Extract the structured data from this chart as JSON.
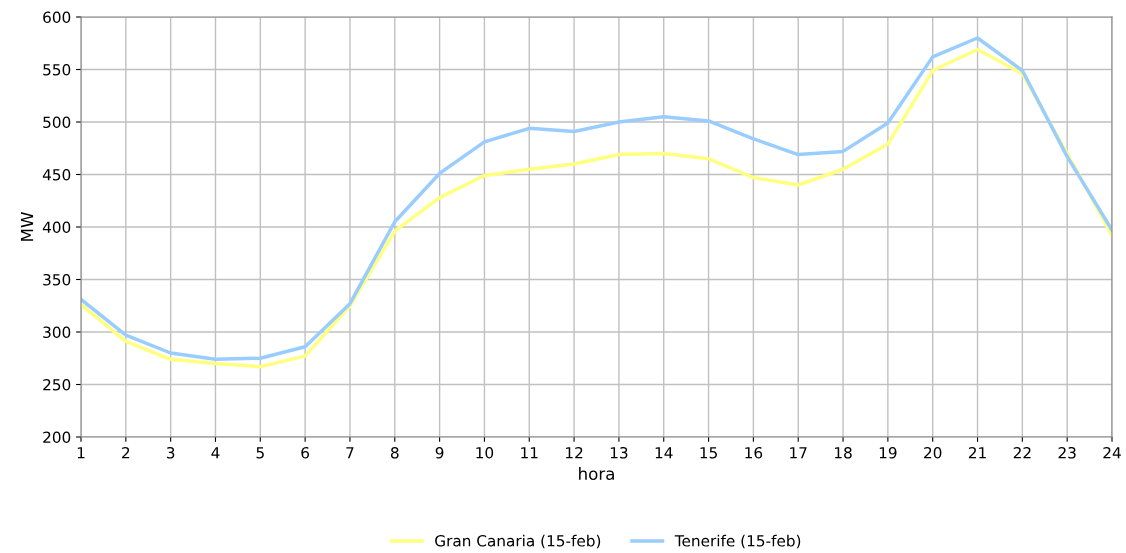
{
  "chart_data": {
    "type": "line",
    "xlabel": "hora",
    "ylabel": "MW",
    "x": [
      1,
      2,
      3,
      4,
      5,
      6,
      7,
      8,
      9,
      10,
      11,
      12,
      13,
      14,
      15,
      16,
      17,
      18,
      19,
      20,
      21,
      22,
      23,
      24
    ],
    "xlim": [
      1,
      24
    ],
    "xticks": [
      1,
      2,
      3,
      4,
      5,
      6,
      7,
      8,
      9,
      10,
      11,
      12,
      13,
      14,
      15,
      16,
      17,
      18,
      19,
      20,
      21,
      22,
      23,
      24
    ],
    "ylim": [
      200,
      600
    ],
    "yticks": [
      200,
      250,
      300,
      350,
      400,
      450,
      500,
      550,
      600
    ],
    "grid": true,
    "legend": "bottom",
    "marker": "none",
    "line_style": "solid",
    "series": [
      {
        "name": "Gran Canaria (15-feb)",
        "color": "#ffff80",
        "values": [
          326,
          291,
          274,
          270,
          267,
          277,
          325,
          396,
          428,
          449,
          455,
          460,
          469,
          470,
          465,
          447,
          440,
          455,
          479,
          549,
          569,
          546,
          470,
          392
        ]
      },
      {
        "name": "Tenerife (15-feb)",
        "color": "#99ccff",
        "values": [
          331,
          297,
          280,
          274,
          275,
          286,
          327,
          405,
          451,
          481,
          494,
          491,
          500,
          505,
          501,
          484,
          469,
          472,
          499,
          562,
          580,
          549,
          467,
          397
        ]
      }
    ]
  }
}
